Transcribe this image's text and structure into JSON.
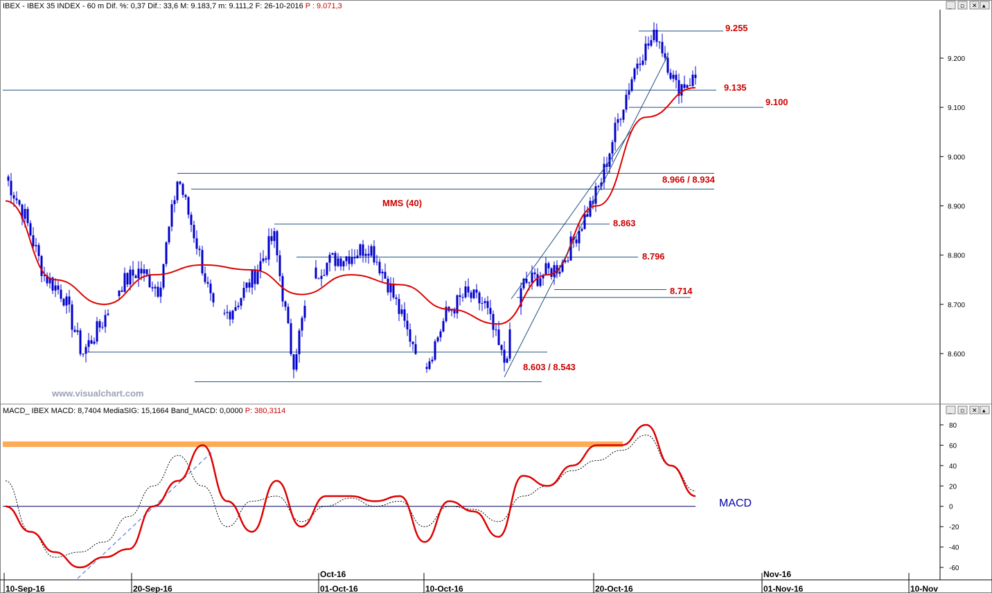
{
  "main_header": {
    "text": "IBEX - IBEX 35 INDEX -  60 m  Dif. %: 0,37  Dif.: 33,6  M: 9.183,7  m: 9.111,2  F: 26-10-2016 ",
    "price_text": "P : 9.071,3"
  },
  "macd_header": {
    "text": "MACD_ IBEX MACD: 8,7404  MediaSIG: 15,1664  Band_MACD: 0,0000 ",
    "price_text": "P: 380,3114"
  },
  "watermark": "www.visualchart.com",
  "colors": {
    "price_bars": "#0000cc",
    "moving_average": "#dd0000",
    "level_lines": "#1f4f7f",
    "macd_line": "#dd0000",
    "signal_line": "#000000",
    "resistance_band": "#ffaa55",
    "level_labels": "#cc0000"
  },
  "chart_data": [
    {
      "type": "candlestick",
      "name": "IBEX 35 60m",
      "ylim": [
        8500,
        9300
      ],
      "yticks": [
        "9.200",
        "9.100",
        "9.000",
        "8.900",
        "8.800",
        "8.700",
        "8.600"
      ],
      "ma_label": "MMS (40)",
      "levels": [
        {
          "label": "9.255",
          "value": 9255
        },
        {
          "label": "9.135",
          "value": 9135
        },
        {
          "label": "9.100",
          "value": 9100
        },
        {
          "label": "8.966 / 8.934",
          "values": [
            8966,
            8934
          ]
        },
        {
          "label": "8.863",
          "value": 8863
        },
        {
          "label": "8.796",
          "value": 8796
        },
        {
          "label": "8.714",
          "values": [
            8730,
            8714
          ]
        },
        {
          "label": "8.603 / 8.543",
          "values": [
            8603,
            8543
          ]
        }
      ],
      "close_series_anchor_values": [
        8960,
        8880,
        8760,
        8720,
        8600,
        8660,
        8740,
        8770,
        8730,
        8960,
        8820,
        8660,
        8700,
        8760,
        8840,
        8580,
        8760,
        8790,
        8800,
        8820,
        8740,
        8640,
        8580,
        8680,
        8720,
        8700,
        8580,
        8740,
        8760,
        8780,
        8860,
        8940,
        9080,
        9200,
        9250,
        9140,
        9160
      ],
      "ma_values": [
        8910,
        8750,
        8700,
        8760,
        8780,
        8770,
        8720,
        8760,
        8740,
        8690,
        8660,
        8760,
        8900,
        9080,
        9140
      ]
    },
    {
      "type": "line",
      "name": "MACD",
      "label": "MACD",
      "ylim": [
        -70,
        90
      ],
      "yticks": [
        "80",
        "60",
        "40",
        "20",
        "0",
        "-20",
        "-40",
        "-60"
      ],
      "band_value": 61,
      "macd_values": [
        0,
        -25,
        -45,
        -60,
        -50,
        -42,
        0,
        25,
        60,
        5,
        -25,
        25,
        -20,
        10,
        10,
        5,
        10,
        -35,
        5,
        -5,
        -30,
        30,
        20,
        40,
        60,
        60,
        80,
        40,
        10
      ],
      "signal_values": [
        25,
        -25,
        -50,
        -45,
        -35,
        -10,
        20,
        50,
        20,
        -20,
        5,
        10,
        -15,
        0,
        8,
        0,
        5,
        -20,
        0,
        -3,
        -15,
        10,
        20,
        35,
        45,
        55,
        70,
        40,
        15
      ]
    }
  ],
  "time_axis": {
    "labels": [
      "10-Sep-16",
      "20-Sep-16",
      "01-Oct-16",
      "10-Oct-16",
      "20-Oct-16",
      "01-Nov-16",
      "10-Nov"
    ],
    "month_labels": [
      "Oct-16",
      "Nov-16"
    ]
  }
}
